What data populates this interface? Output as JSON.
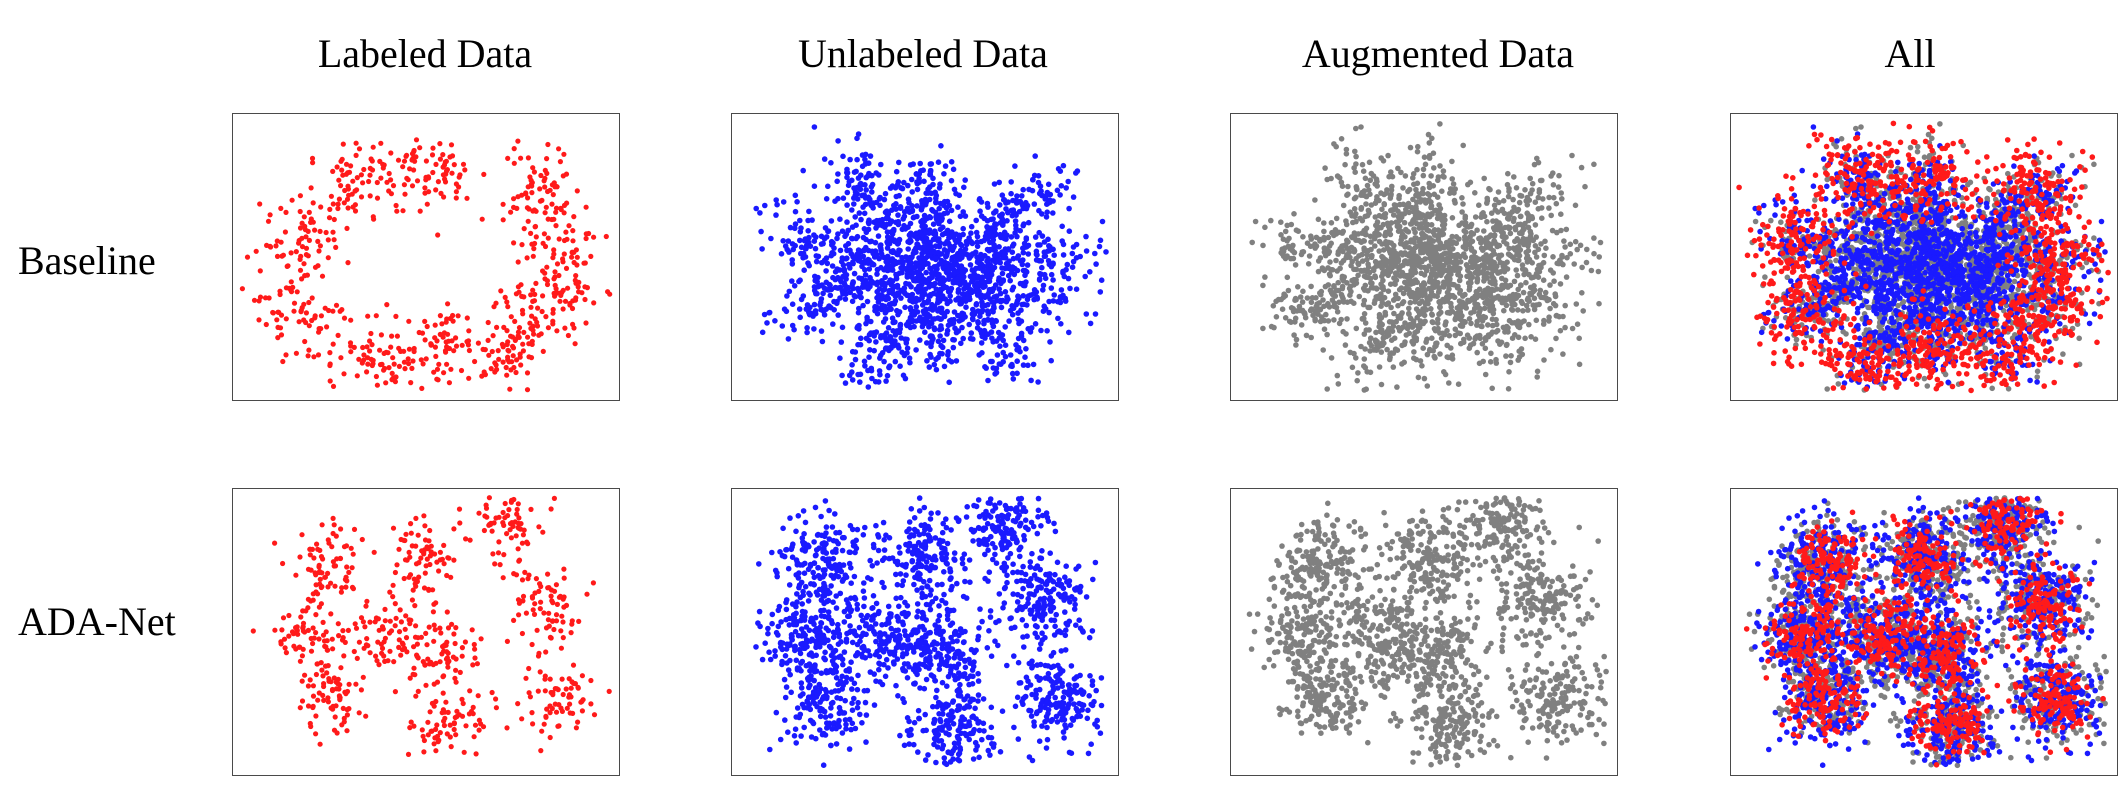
{
  "columns": [
    "Labeled Data",
    "Unlabeled Data",
    "Augmented Data",
    "All"
  ],
  "rows": [
    "Baseline",
    "ADA-Net"
  ],
  "colors": {
    "labeled": "#ff1a1a",
    "unlabeled": "#1a1aff",
    "augmented": "#808080"
  },
  "chart_data": [
    {
      "type": "scatter",
      "row": "Baseline",
      "layout": "radial",
      "clusters": [
        {
          "x": 0.52,
          "y": 0.22
        },
        {
          "x": 0.33,
          "y": 0.22
        },
        {
          "x": 0.8,
          "y": 0.28
        },
        {
          "x": 0.85,
          "y": 0.5
        },
        {
          "x": 0.82,
          "y": 0.68
        },
        {
          "x": 0.71,
          "y": 0.83
        },
        {
          "x": 0.53,
          "y": 0.83
        },
        {
          "x": 0.36,
          "y": 0.88
        },
        {
          "x": 0.18,
          "y": 0.7
        },
        {
          "x": 0.17,
          "y": 0.44
        }
      ]
    },
    {
      "type": "scatter",
      "row": "ADA-Net",
      "layout": "separated",
      "clusters": [
        {
          "x": 0.71,
          "y": 0.12
        },
        {
          "x": 0.5,
          "y": 0.24
        },
        {
          "x": 0.25,
          "y": 0.26
        },
        {
          "x": 0.81,
          "y": 0.4
        },
        {
          "x": 0.2,
          "y": 0.51
        },
        {
          "x": 0.4,
          "y": 0.51
        },
        {
          "x": 0.55,
          "y": 0.57
        },
        {
          "x": 0.25,
          "y": 0.73
        },
        {
          "x": 0.85,
          "y": 0.74
        },
        {
          "x": 0.57,
          "y": 0.83
        }
      ]
    }
  ]
}
